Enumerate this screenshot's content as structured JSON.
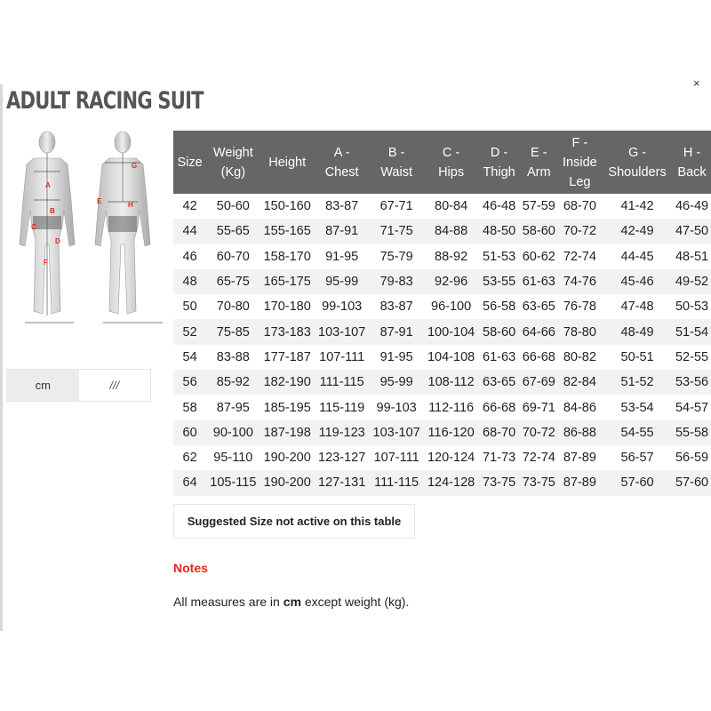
{
  "title": "ADULT RACING SUIT",
  "close_label": "×",
  "figure_labels": [
    "A",
    "B",
    "C",
    "D",
    "E",
    "F",
    "G",
    "H"
  ],
  "unit_toggle": {
    "active": "cm",
    "other": "///"
  },
  "table": {
    "headers": [
      [
        "Size"
      ],
      [
        "Weight",
        "(Kg)"
      ],
      [
        "Height"
      ],
      [
        "A -",
        "Chest"
      ],
      [
        "B -",
        "Waist"
      ],
      [
        "C -",
        "Hips"
      ],
      [
        "D -",
        "Thigh"
      ],
      [
        "E -",
        "Arm"
      ],
      [
        "F -",
        "Inside",
        "Leg"
      ],
      [
        "G -",
        "Shoulders"
      ],
      [
        "H -",
        "Back"
      ]
    ],
    "rows": [
      [
        "42",
        "50-60",
        "150-160",
        "83-87",
        "67-71",
        "80-84",
        "46-48",
        "57-59",
        "68-70",
        "41-42",
        "46-49"
      ],
      [
        "44",
        "55-65",
        "155-165",
        "87-91",
        "71-75",
        "84-88",
        "48-50",
        "58-60",
        "70-72",
        "42-49",
        "47-50"
      ],
      [
        "46",
        "60-70",
        "158-170",
        "91-95",
        "75-79",
        "88-92",
        "51-53",
        "60-62",
        "72-74",
        "44-45",
        "48-51"
      ],
      [
        "48",
        "65-75",
        "165-175",
        "95-99",
        "79-83",
        "92-96",
        "53-55",
        "61-63",
        "74-76",
        "45-46",
        "49-52"
      ],
      [
        "50",
        "70-80",
        "170-180",
        "99-103",
        "83-87",
        "96-100",
        "56-58",
        "63-65",
        "76-78",
        "47-48",
        "50-53"
      ],
      [
        "52",
        "75-85",
        "173-183",
        "103-107",
        "87-91",
        "100-104",
        "58-60",
        "64-66",
        "78-80",
        "48-49",
        "51-54"
      ],
      [
        "54",
        "83-88",
        "177-187",
        "107-111",
        "91-95",
        "104-108",
        "61-63",
        "66-68",
        "80-82",
        "50-51",
        "52-55"
      ],
      [
        "56",
        "85-92",
        "182-190",
        "111-115",
        "95-99",
        "108-112",
        "63-65",
        "67-69",
        "82-84",
        "51-52",
        "53-56"
      ],
      [
        "58",
        "87-95",
        "185-195",
        "115-119",
        "99-103",
        "112-116",
        "66-68",
        "69-71",
        "84-86",
        "53-54",
        "54-57"
      ],
      [
        "60",
        "90-100",
        "187-198",
        "119-123",
        "103-107",
        "116-120",
        "68-70",
        "70-72",
        "86-88",
        "54-55",
        "55-58"
      ],
      [
        "62",
        "95-110",
        "190-200",
        "123-127",
        "107-111",
        "120-124",
        "71-73",
        "72-74",
        "87-89",
        "56-57",
        "56-59"
      ],
      [
        "64",
        "105-115",
        "190-200",
        "127-131",
        "111-115",
        "124-128",
        "73-75",
        "73-75",
        "87-89",
        "57-60",
        "57-60"
      ]
    ]
  },
  "suggested_size": "Suggested Size not active on this table",
  "notes": {
    "heading": "Notes",
    "text_before": "All measures are in ",
    "text_bold": "cm",
    "text_after": " except weight (kg)."
  },
  "colors": {
    "header_bg": "#666666",
    "accent": "#e3261b",
    "stripe": "#f2f2f2"
  }
}
